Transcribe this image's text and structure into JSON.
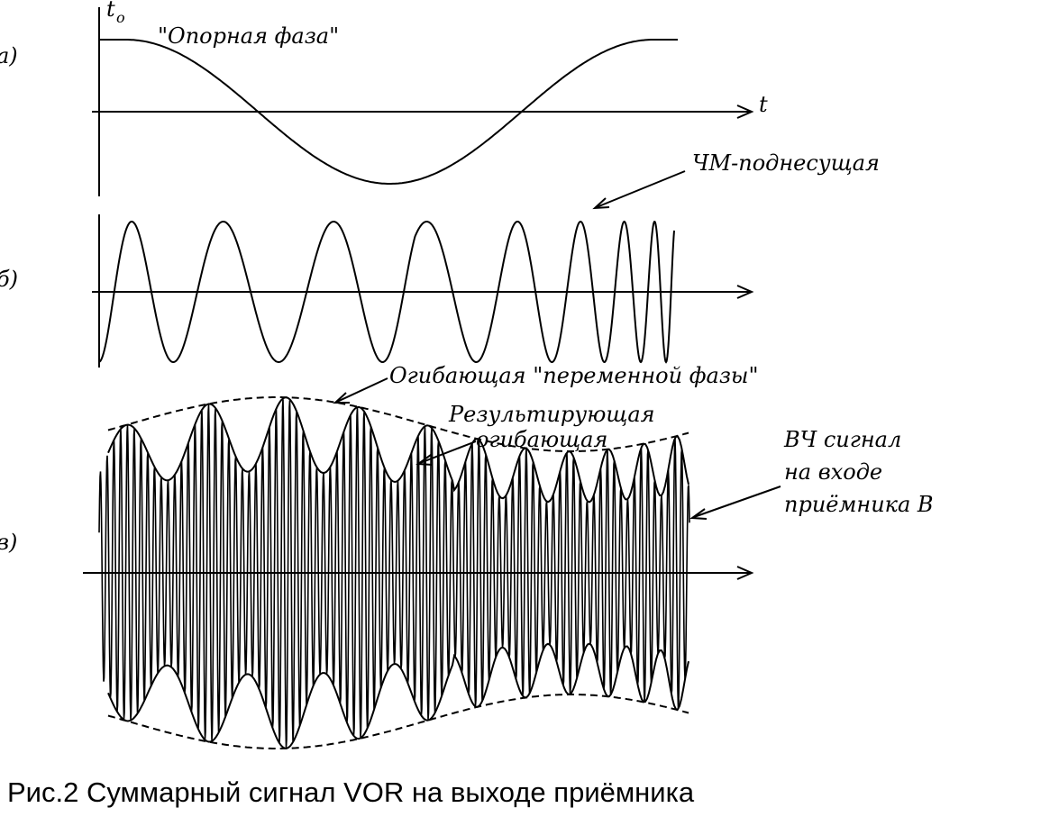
{
  "panels": {
    "a": {
      "marker": "а)",
      "t0_label": "t",
      "t0_sub": "o",
      "t_axis_label": "t",
      "title": "\"Опорная фаза\""
    },
    "b": {
      "marker": "б)",
      "subcarrier_label": "ЧМ-поднесущая"
    },
    "v": {
      "marker": "в)",
      "envelope_label": "Огибающая \"переменной фазы\"",
      "result_label_line1": "Результирующая",
      "result_label_line2": "огибающая",
      "rf_label_line1": "ВЧ сигнал",
      "rf_label_line2": "на входе",
      "rf_label_line3": "приёмника В"
    }
  },
  "caption": "Рис.2 Суммарный сигнал VOR на выходе приёмника"
}
